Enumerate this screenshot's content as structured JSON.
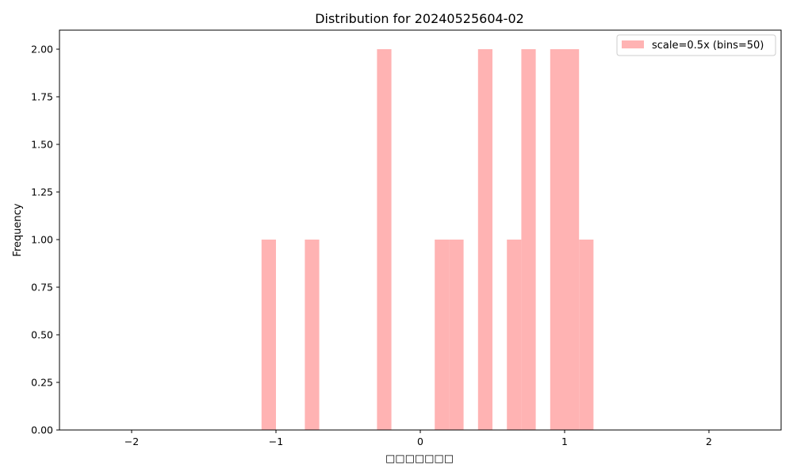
{
  "chart_data": {
    "type": "bar",
    "title": "Distribution for 20240525604-02",
    "xlabel": "□□□□□□□",
    "ylabel": "Frequency",
    "xlim": [
      -2.5,
      2.5
    ],
    "ylim": [
      0,
      2.1
    ],
    "x_ticks": [
      -2,
      -1,
      0,
      1,
      2
    ],
    "y_ticks": [
      0.0,
      0.25,
      0.5,
      0.75,
      1.0,
      1.25,
      1.5,
      1.75,
      2.0
    ],
    "x_tick_labels": [
      "−2",
      "−1",
      "0",
      "1",
      "2"
    ],
    "y_tick_labels": [
      "0.00",
      "0.25",
      "0.50",
      "0.75",
      "1.00",
      "1.25",
      "1.50",
      "1.75",
      "2.00"
    ],
    "grid": false,
    "legend_position": "top-right",
    "bar_color": "#ffb3b3",
    "series": [
      {
        "name": "scale=0.5x (bins=50)",
        "bins": [
          {
            "x0": -1.1,
            "x1": -1.0,
            "count": 1
          },
          {
            "x0": -0.8,
            "x1": -0.7,
            "count": 1
          },
          {
            "x0": -0.3,
            "x1": -0.2,
            "count": 2
          },
          {
            "x0": 0.1,
            "x1": 0.2,
            "count": 1
          },
          {
            "x0": 0.2,
            "x1": 0.3,
            "count": 1
          },
          {
            "x0": 0.4,
            "x1": 0.5,
            "count": 2
          },
          {
            "x0": 0.6,
            "x1": 0.7,
            "count": 1
          },
          {
            "x0": 0.7,
            "x1": 0.8,
            "count": 2
          },
          {
            "x0": 0.9,
            "x1": 1.0,
            "count": 2
          },
          {
            "x0": 1.0,
            "x1": 1.1,
            "count": 2
          },
          {
            "x0": 1.1,
            "x1": 1.2,
            "count": 1
          }
        ]
      }
    ]
  }
}
